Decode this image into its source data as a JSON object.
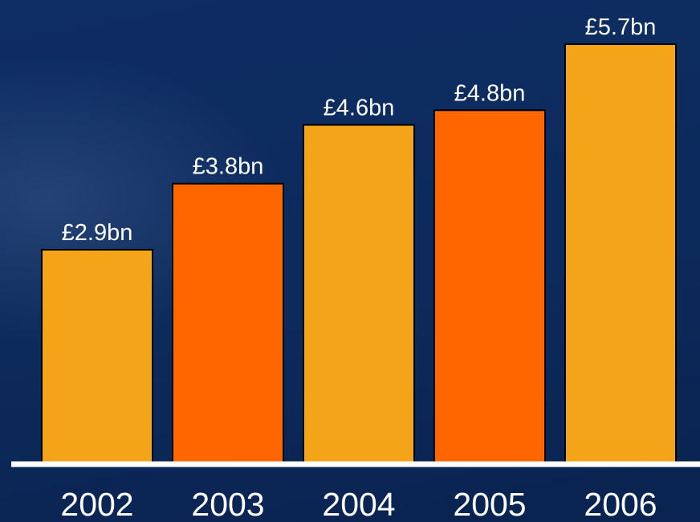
{
  "chart_data": {
    "type": "bar",
    "categories": [
      "2002",
      "2003",
      "2004",
      "2005",
      "2006"
    ],
    "values": [
      2.9,
      3.8,
      4.6,
      4.8,
      5.7
    ],
    "data_labels": [
      "£2.9bn",
      "£3.8bn",
      "£4.6bn",
      "£4.8bn",
      "£5.7bn"
    ],
    "bar_colors": [
      "#f4a418",
      "#ff6600",
      "#f4a418",
      "#ff6600",
      "#f4a418"
    ],
    "ylim": [
      0,
      6
    ],
    "grid": false,
    "title": "",
    "xlabel": "",
    "ylabel": ""
  },
  "colors": {
    "background": "#0d2b5c",
    "baseline": "#ffffff",
    "bar_outline": "#000000",
    "text": "#ffffff"
  }
}
